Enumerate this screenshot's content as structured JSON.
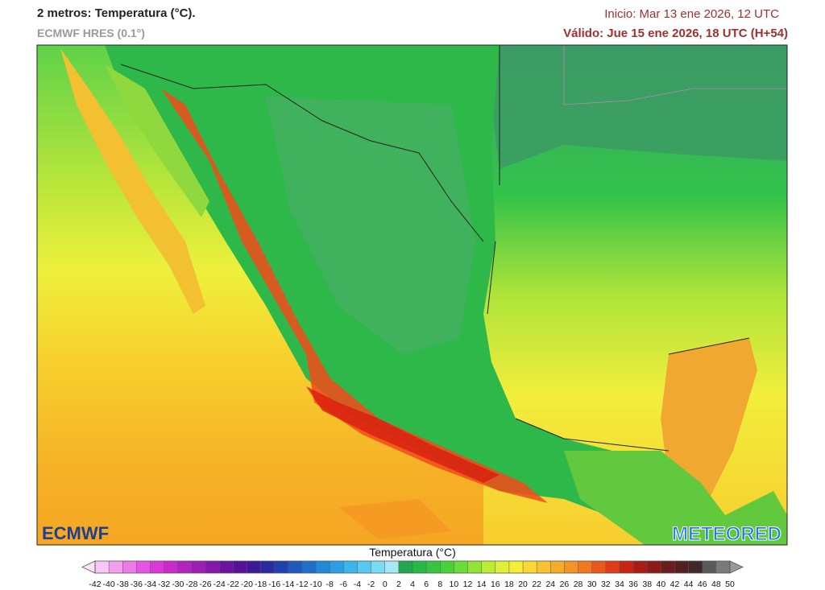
{
  "header": {
    "title": "2 metros: Temperatura (°C).",
    "model": "ECMWF HRES (0.1°)",
    "start": "Inicio: Mar 13 ene 2026, 12 UTC",
    "valid": "Válido: Jue 15 ene 2026, 18 UTC (H+54)"
  },
  "logos": {
    "left": "ECMWF",
    "right": "METEORED"
  },
  "colorbar": {
    "title": "Temperatura (°C)",
    "ticks": [
      -42,
      -40,
      -38,
      -36,
      -34,
      -32,
      -30,
      -28,
      -26,
      -24,
      -22,
      -20,
      -18,
      -16,
      -14,
      -12,
      -10,
      -8,
      -6,
      -4,
      -2,
      0,
      2,
      4,
      6,
      8,
      10,
      12,
      14,
      16,
      18,
      20,
      22,
      24,
      26,
      28,
      30,
      32,
      34,
      36,
      38,
      40,
      42,
      44,
      46,
      48,
      50
    ],
    "colors": [
      "#f7c8f2",
      "#f2a0ee",
      "#ec7ae8",
      "#e456e0",
      "#da38d8",
      "#c82cc8",
      "#b424bc",
      "#9c1eb4",
      "#8418aa",
      "#6c14a2",
      "#56129a",
      "#3e1896",
      "#2c2aa0",
      "#2040b0",
      "#1e58c0",
      "#1f70cc",
      "#2288d8",
      "#2aa0e2",
      "#3cb6ea",
      "#58caf0",
      "#7cdaf4",
      "#a8e8f6",
      "#20a850",
      "#28b848",
      "#34c640",
      "#48d23a",
      "#6cdc38",
      "#94e436",
      "#bcec36",
      "#e0f03a",
      "#f6ec3a",
      "#f8d834",
      "#f8c42e",
      "#f6ac28",
      "#f49424",
      "#f07820",
      "#ea581c",
      "#e03a18",
      "#c82414",
      "#a81c14",
      "#8a1c18",
      "#6c1c1c",
      "#522020",
      "#402828",
      "#5a5a5a",
      "#7a7a7a"
    ]
  }
}
